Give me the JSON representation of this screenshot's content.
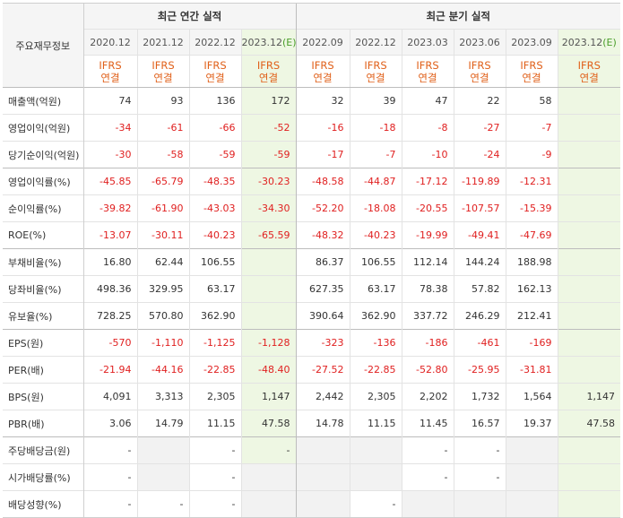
{
  "table": {
    "corner_label": "주요재무정보",
    "group_annual": "최근 연간 실적",
    "group_quarter": "최근 분기 실적",
    "periods": [
      "2020.12",
      "2021.12",
      "2022.12",
      "2023.12",
      "2022.09",
      "2022.12",
      "2023.03",
      "2023.06",
      "2023.09",
      "2023.12"
    ],
    "estimate_mark": "(E)",
    "ifrs_line1": "IFRS",
    "ifrs_line2": "연결",
    "rows": [
      {
        "label": "매출액(억원)",
        "values": [
          "74",
          "93",
          "136",
          "172",
          "32",
          "39",
          "47",
          "22",
          "58",
          ""
        ]
      },
      {
        "label": "영업이익(억원)",
        "values": [
          "-34",
          "-61",
          "-66",
          "-52",
          "-16",
          "-18",
          "-8",
          "-27",
          "-7",
          ""
        ]
      },
      {
        "label": "당기순이익(억원)",
        "values": [
          "-30",
          "-58",
          "-59",
          "-59",
          "-17",
          "-7",
          "-10",
          "-24",
          "-9",
          ""
        ]
      },
      {
        "label": "영업이익률(%)",
        "values": [
          "-45.85",
          "-65.79",
          "-48.35",
          "-30.23",
          "-48.58",
          "-44.87",
          "-17.12",
          "-119.89",
          "-12.31",
          ""
        ]
      },
      {
        "label": "순이익률(%)",
        "values": [
          "-39.82",
          "-61.90",
          "-43.03",
          "-34.30",
          "-52.20",
          "-18.08",
          "-20.55",
          "-107.57",
          "-15.39",
          ""
        ]
      },
      {
        "label": "ROE(%)",
        "values": [
          "-13.07",
          "-30.11",
          "-40.23",
          "-65.59",
          "-48.32",
          "-40.23",
          "-19.99",
          "-49.41",
          "-47.69",
          ""
        ]
      },
      {
        "label": "부채비율(%)",
        "values": [
          "16.80",
          "62.44",
          "106.55",
          "",
          "86.37",
          "106.55",
          "112.14",
          "144.24",
          "188.98",
          ""
        ]
      },
      {
        "label": "당좌비율(%)",
        "values": [
          "498.36",
          "329.95",
          "63.17",
          "",
          "627.35",
          "63.17",
          "78.38",
          "57.82",
          "162.13",
          ""
        ]
      },
      {
        "label": "유보율(%)",
        "values": [
          "728.25",
          "570.80",
          "362.90",
          "",
          "390.64",
          "362.90",
          "337.72",
          "246.29",
          "212.41",
          ""
        ]
      },
      {
        "label": "EPS(원)",
        "values": [
          "-570",
          "-1,110",
          "-1,125",
          "-1,128",
          "-323",
          "-136",
          "-186",
          "-461",
          "-169",
          ""
        ]
      },
      {
        "label": "PER(배)",
        "values": [
          "-21.94",
          "-44.16",
          "-22.85",
          "-48.40",
          "-27.52",
          "-22.85",
          "-52.80",
          "-25.95",
          "-31.81",
          ""
        ]
      },
      {
        "label": "BPS(원)",
        "values": [
          "4,091",
          "3,313",
          "2,305",
          "1,147",
          "2,442",
          "2,305",
          "2,202",
          "1,732",
          "1,564",
          "1,147"
        ]
      },
      {
        "label": "PBR(배)",
        "values": [
          "3.06",
          "14.79",
          "11.15",
          "47.58",
          "14.78",
          "11.15",
          "11.45",
          "16.57",
          "19.37",
          "47.58"
        ]
      },
      {
        "label": "주당배당금(원)",
        "values": [
          "-",
          "",
          "-",
          "-",
          "",
          "",
          "-",
          "-",
          "",
          ""
        ]
      },
      {
        "label": "시가배당률(%)",
        "values": [
          "-",
          "",
          "-",
          "",
          "",
          "",
          "-",
          "-",
          "",
          ""
        ]
      },
      {
        "label": "배당성향(%)",
        "values": [
          "-",
          "-",
          "-",
          "",
          "",
          "-",
          "",
          "",
          "",
          ""
        ]
      }
    ]
  }
}
